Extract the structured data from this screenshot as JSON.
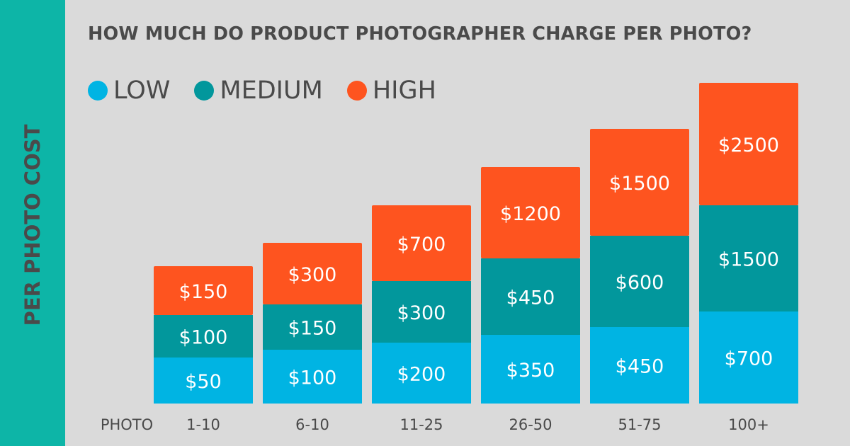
{
  "chart_data": {
    "type": "bar",
    "stacked": true,
    "title": "HOW MUCH DO PRODUCT PHOTOGRAPHER CHARGE PER PHOTO?",
    "ylabel": "PER PHOTO COST",
    "xlabel": "PHOTO",
    "categories": [
      "1-10",
      "6-10",
      "11-25",
      "26-50",
      "51-75",
      "100+"
    ],
    "legend_position": "top-left",
    "grid": false,
    "series": [
      {
        "name": "LOW",
        "color": "#00b4e3",
        "values": [
          50,
          100,
          200,
          350,
          450,
          700
        ],
        "labels": [
          "$50",
          "$100",
          "$200",
          "$350",
          "$450",
          "$700"
        ]
      },
      {
        "name": "MEDIUM",
        "color": "#02979c",
        "values": [
          100,
          150,
          300,
          450,
          600,
          1500
        ],
        "labels": [
          "$100",
          "$150",
          "$300",
          "$450",
          "$600",
          "$1500"
        ]
      },
      {
        "name": "HIGH",
        "color": "#fe541f",
        "values": [
          150,
          300,
          700,
          1200,
          1500,
          2500
        ],
        "labels": [
          "$150",
          "$300",
          "$700",
          "$1200",
          "$1500",
          "$2500"
        ]
      }
    ]
  },
  "colors": {
    "accent_strip": "#0db5a7",
    "background": "#dadada",
    "text": "#4a4a4a"
  }
}
